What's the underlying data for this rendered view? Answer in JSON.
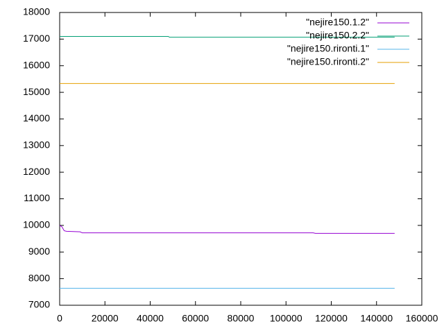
{
  "chart_data": {
    "type": "line",
    "series": [
      {
        "name": "\"nejire150.1.2\"",
        "color": "#9400d3",
        "x": [
          0,
          1000,
          2000,
          3000,
          9000,
          10000,
          112000,
          113000,
          148000
        ],
        "values": [
          10000,
          9950,
          9800,
          9780,
          9760,
          9720,
          9720,
          9700,
          9700
        ]
      },
      {
        "name": "\"nejire150.2.2\"",
        "color": "#009e73",
        "x": [
          0,
          48000,
          48500,
          148000
        ],
        "values": [
          17100,
          17100,
          17070,
          17070
        ]
      },
      {
        "name": "\"nejire150.rironti.1\"",
        "color": "#56b4e9",
        "x": [
          0,
          148000
        ],
        "values": [
          7640,
          7640
        ]
      },
      {
        "name": "\"nejire150.rironti.2\"",
        "color": "#e69f00",
        "x": [
          0,
          148000
        ],
        "values": [
          15330,
          15330
        ]
      }
    ],
    "xlim": [
      0,
      160000
    ],
    "xticks": [
      0,
      20000,
      40000,
      60000,
      80000,
      100000,
      120000,
      140000,
      160000
    ],
    "ylim": [
      7000,
      18000
    ],
    "yticks": [
      7000,
      8000,
      9000,
      10000,
      11000,
      12000,
      13000,
      14000,
      15000,
      16000,
      17000,
      18000
    ],
    "legend": "top-right"
  }
}
